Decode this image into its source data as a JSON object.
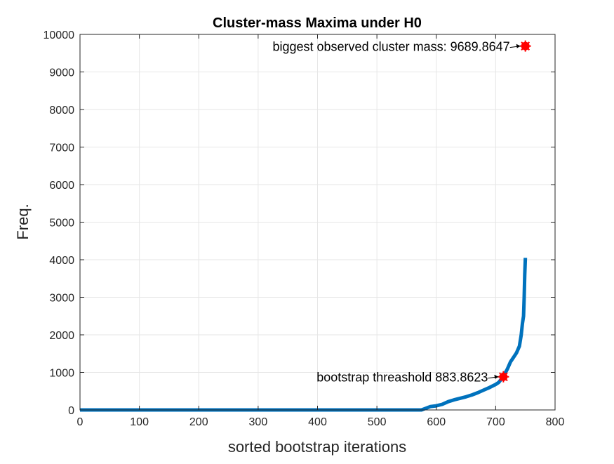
{
  "chart_data": {
    "type": "line",
    "title": "Cluster-mass Maxima under H0",
    "xlabel": "sorted bootstrap iterations",
    "ylabel": "Freq.",
    "xlim": [
      0,
      800
    ],
    "ylim": [
      0,
      10000
    ],
    "xticks": [
      0,
      100,
      200,
      300,
      400,
      500,
      600,
      700,
      800
    ],
    "yticks": [
      0,
      1000,
      2000,
      3000,
      4000,
      5000,
      6000,
      7000,
      8000,
      9000,
      10000
    ],
    "grid": true,
    "colors": {
      "line": "#0072bd",
      "marker": "#ff0000",
      "grid": "#e6e6e6",
      "axis": "#262626"
    },
    "series": [
      {
        "x": [
          0,
          100,
          200,
          300,
          400,
          500,
          560,
          575,
          580,
          590,
          600,
          610,
          620,
          630,
          640,
          650,
          660,
          670,
          680,
          690,
          700,
          705,
          710,
          715,
          720,
          725,
          730,
          735,
          740,
          743,
          745,
          747,
          748,
          749,
          750
        ],
        "y": [
          0,
          0,
          0,
          0,
          0,
          0,
          0,
          0,
          30,
          90,
          110,
          150,
          220,
          270,
          310,
          350,
          400,
          460,
          530,
          600,
          680,
          730,
          830,
          950,
          1100,
          1280,
          1400,
          1520,
          1700,
          2000,
          2300,
          2500,
          3000,
          3600,
          4050
        ]
      }
    ],
    "annotations": [
      {
        "label": "bootstrap threashold 883.8623",
        "x": 713,
        "y": 884
      },
      {
        "label": "biggest observed cluster mass: 9689.8647",
        "x": 750,
        "y": 9690
      }
    ]
  }
}
